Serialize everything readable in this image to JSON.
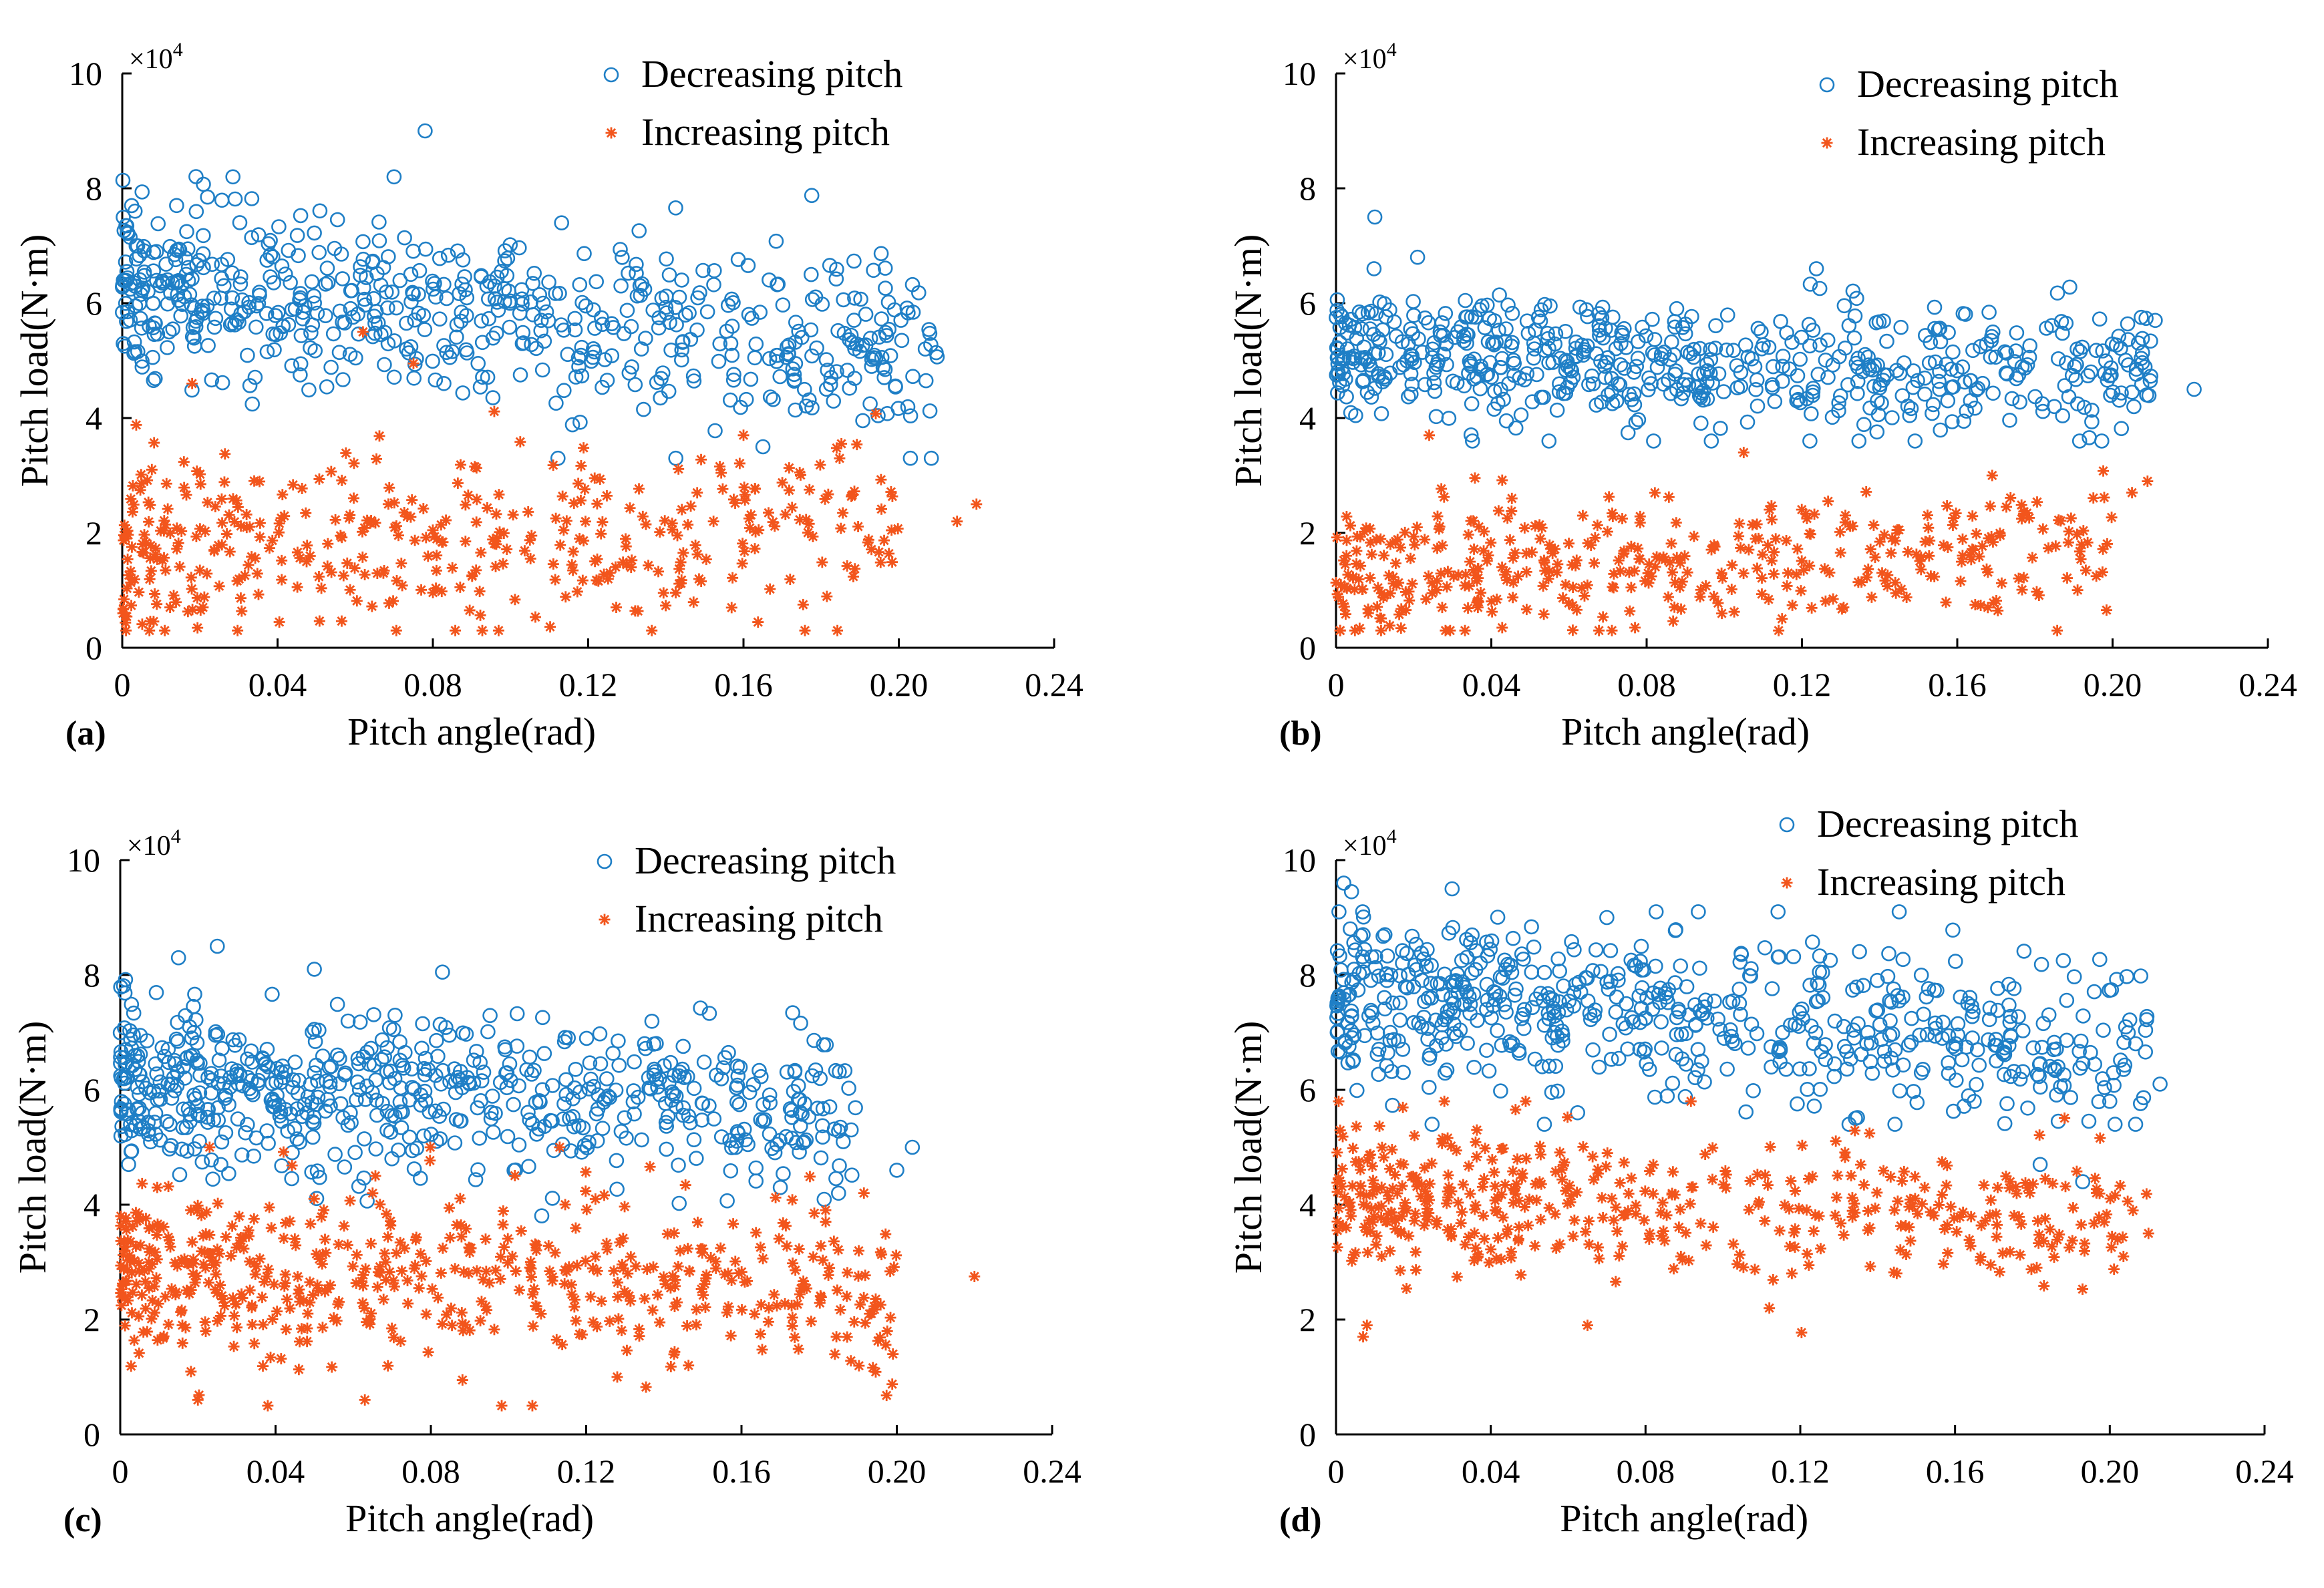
{
  "figure": {
    "panels": [
      "a",
      "b",
      "c",
      "d"
    ]
  },
  "colors": {
    "decreasing": "#1f7fc6",
    "increasing": "#f2551c",
    "axis": "#000000"
  },
  "chart_data": [
    {
      "type": "scatter",
      "panel_label": "(a)",
      "xlabel": "Pitch angle(rad)",
      "ylabel": "Pitch load(N·m)",
      "y_multiplier": "×10",
      "y_multiplier_exp": "4",
      "xlim": [
        0,
        0.24
      ],
      "ylim": [
        0,
        10
      ],
      "xticks": [
        0,
        0.04,
        0.08,
        0.12,
        0.16,
        0.2,
        0.24
      ],
      "xtick_labels": [
        "0",
        "0.04",
        "0.08",
        "0.12",
        "0.16",
        "0.20",
        "0.24"
      ],
      "yticks": [
        0,
        2,
        4,
        6,
        8,
        10
      ],
      "ytick_labels": [
        "0",
        "2",
        "4",
        "6",
        "8",
        "10"
      ],
      "legend_position": "top-right",
      "series": [
        {
          "name": "Decreasing pitch",
          "marker": "circle",
          "cloud": {
            "n": 620,
            "x_max": 0.21,
            "y_start": 6.3,
            "y_end": 5.1,
            "spread": 0.75,
            "y_min": 3.3,
            "y_max": 8.4,
            "seed": 11
          },
          "points": [
            [
              0.078,
              9.0
            ],
            [
              0.07,
              8.2
            ],
            [
              0.0285,
              8.2
            ],
            [
              0.014,
              7.7
            ],
            [
              0.203,
              3.3
            ],
            [
              0.165,
              3.5
            ],
            [
              0.193,
              4.9
            ],
            [
              0.207,
              4.65
            ]
          ]
        },
        {
          "name": "Increasing pitch",
          "marker": "star",
          "cloud": {
            "n": 420,
            "x_max": 0.2,
            "y_start": 1.7,
            "y_end": 1.9,
            "spread": 0.8,
            "y_min": 0.3,
            "y_max": 5.0,
            "seed": 23
          },
          "points": [
            [
              0.007,
              0.3
            ],
            [
              0.22,
              2.5
            ],
            [
              0.215,
              2.2
            ],
            [
              0.16,
              3.7
            ],
            [
              0.075,
              4.95
            ],
            [
              0.018,
              4.6
            ],
            [
              0.062,
              5.5
            ]
          ]
        }
      ]
    },
    {
      "type": "scatter",
      "panel_label": "(b)",
      "xlabel": "Pitch angle(rad)",
      "ylabel": "Pitch load(N·m)",
      "y_multiplier": "×10",
      "y_multiplier_exp": "4",
      "xlim": [
        0,
        0.24
      ],
      "ylim": [
        0,
        10
      ],
      "xticks": [
        0,
        0.04,
        0.08,
        0.12,
        0.16,
        0.2,
        0.24
      ],
      "xtick_labels": [
        "0",
        "0.04",
        "0.08",
        "0.12",
        "0.16",
        "0.20",
        "0.24"
      ],
      "yticks": [
        0,
        2,
        4,
        6,
        8,
        10
      ],
      "ytick_labels": [
        "0",
        "2",
        "4",
        "6",
        "8",
        "10"
      ],
      "legend_position": "top-right",
      "series": [
        {
          "name": "Decreasing pitch",
          "marker": "circle",
          "cloud": {
            "n": 600,
            "x_max": 0.21,
            "y_start": 5.1,
            "y_end": 4.8,
            "spread": 0.55,
            "y_min": 3.6,
            "y_max": 6.6,
            "seed": 37
          },
          "points": [
            [
              0.01,
              7.5
            ],
            [
              0.021,
              6.8
            ],
            [
              0.221,
              4.5
            ],
            [
              0.211,
              5.7
            ],
            [
              0.188,
              5.65
            ],
            [
              0.205,
              4.45
            ],
            [
              0.185,
              4.2
            ]
          ]
        },
        {
          "name": "Increasing pitch",
          "marker": "star",
          "cloud": {
            "n": 420,
            "x_max": 0.2,
            "y_start": 1.3,
            "y_end": 1.7,
            "spread": 0.6,
            "y_min": 0.3,
            "y_max": 3.7,
            "seed": 41
          },
          "points": [
            [
              0.024,
              3.7
            ],
            [
              0.209,
              2.9
            ],
            [
              0.205,
              2.7
            ],
            [
              0.077,
              0.35
            ],
            [
              0.105,
              3.4
            ],
            [
              0.169,
              3.0
            ]
          ]
        }
      ]
    },
    {
      "type": "scatter",
      "panel_label": "(c)",
      "xlabel": "Pitch angle(rad)",
      "ylabel": "Pitch load(N·m)",
      "y_multiplier": "×10",
      "y_multiplier_exp": "4",
      "xlim": [
        0,
        0.24
      ],
      "ylim": [
        0,
        10
      ],
      "xticks": [
        0,
        0.04,
        0.08,
        0.12,
        0.16,
        0.2,
        0.24
      ],
      "xtick_labels": [
        "0",
        "0.04",
        "0.08",
        "0.12",
        "0.16",
        "0.20",
        "0.24"
      ],
      "yticks": [
        0,
        2,
        4,
        6,
        8,
        10
      ],
      "ytick_labels": [
        "0",
        "2",
        "4",
        "6",
        "8",
        "10"
      ],
      "legend_position": "top-right",
      "series": [
        {
          "name": "Decreasing pitch",
          "marker": "circle",
          "cloud": {
            "n": 640,
            "x_max": 0.19,
            "y_start": 6.1,
            "y_end": 5.6,
            "spread": 0.7,
            "y_min": 3.6,
            "y_max": 8.4,
            "seed": 53
          },
          "points": [
            [
              0.025,
              8.5
            ],
            [
              0.015,
              8.3
            ],
            [
              0.05,
              8.1
            ],
            [
              0.083,
              8.05
            ],
            [
              0.204,
              5.0
            ],
            [
              0.2,
              4.6
            ],
            [
              0.185,
              4.2
            ],
            [
              0.17,
              4.3
            ]
          ]
        },
        {
          "name": "Increasing pitch",
          "marker": "star",
          "cloud": {
            "n": 560,
            "x_max": 0.2,
            "y_start": 2.9,
            "y_end": 2.5,
            "spread": 0.75,
            "y_min": 0.5,
            "y_max": 5.0,
            "seed": 67
          },
          "points": [
            [
              0.038,
              0.5
            ],
            [
              0.063,
              0.6
            ],
            [
              0.02,
              0.6
            ],
            [
              0.22,
              2.75
            ],
            [
              0.199,
              1.4
            ],
            [
              0.128,
              1.0
            ],
            [
              0.065,
              4.2
            ]
          ]
        }
      ]
    },
    {
      "type": "scatter",
      "panel_label": "(d)",
      "xlabel": "Pitch angle(rad)",
      "ylabel": "Pitch load(N·m)",
      "y_multiplier": "×10",
      "y_multiplier_exp": "4",
      "xlim": [
        0,
        0.24
      ],
      "ylim": [
        0,
        10
      ],
      "xticks": [
        0,
        0.04,
        0.08,
        0.12,
        0.16,
        0.2,
        0.24
      ],
      "xtick_labels": [
        "0",
        "0.04",
        "0.08",
        "0.12",
        "0.16",
        "0.20",
        "0.24"
      ],
      "yticks": [
        0,
        2,
        4,
        6,
        8,
        10
      ],
      "ytick_labels": [
        "0",
        "2",
        "4",
        "6",
        "8",
        "10"
      ],
      "legend_position": "top-right",
      "series": [
        {
          "name": "Decreasing pitch",
          "marker": "circle",
          "cloud": {
            "n": 620,
            "x_max": 0.21,
            "y_start": 7.7,
            "y_end": 6.6,
            "spread": 0.75,
            "y_min": 5.4,
            "y_max": 9.1,
            "seed": 79
          },
          "points": [
            [
              0.002,
              9.6
            ],
            [
              0.004,
              9.45
            ],
            [
              0.03,
              9.5
            ],
            [
              0.07,
              9.0
            ],
            [
              0.213,
              6.1
            ],
            [
              0.193,
              4.4
            ],
            [
              0.182,
              4.7
            ],
            [
              0.2,
              5.8
            ]
          ]
        },
        {
          "name": "Increasing pitch",
          "marker": "star",
          "cloud": {
            "n": 470,
            "x_max": 0.21,
            "y_start": 4.1,
            "y_end": 3.7,
            "spread": 0.6,
            "y_min": 1.7,
            "y_max": 5.8,
            "seed": 97
          },
          "points": [
            [
              0.007,
              1.7
            ],
            [
              0.008,
              1.9
            ],
            [
              0.065,
              1.9
            ],
            [
              0.112,
              2.2
            ],
            [
              0.21,
              3.5
            ],
            [
              0.206,
              3.9
            ],
            [
              0.028,
              5.8
            ]
          ]
        }
      ]
    }
  ]
}
